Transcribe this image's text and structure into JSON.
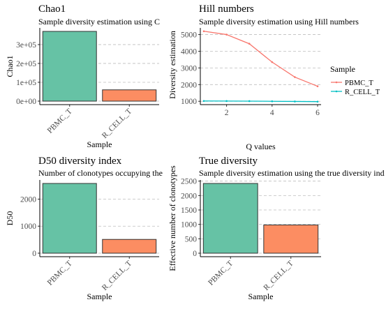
{
  "colors": {
    "PBMC_T": "#66c2a5",
    "R_CELL_T": "#fc8d62",
    "HILL_PBMC_T": "#f8766d",
    "HILL_R_CELL_T": "#00bfc4"
  },
  "chart_data": [
    {
      "type": "bar",
      "title": "Chao1",
      "subtitle": "Sample diversity estimation using C",
      "xlabel": "Sample",
      "ylabel": "Chao1",
      "categories": [
        "PBMC_T",
        "R_CELL_T"
      ],
      "values": [
        370000,
        60000
      ],
      "ylim": [
        0,
        370000
      ],
      "yticks": [
        0,
        100000,
        200000,
        300000
      ],
      "yticklabels": [
        "0e+00",
        "1e+05",
        "2e+05",
        "3e+05"
      ],
      "grid": true
    },
    {
      "type": "line",
      "title": "Hill numbers",
      "subtitle": "Sample diversity estimation using Hill numbers",
      "xlabel": "Q values",
      "ylabel": "Diversity estimation",
      "x": [
        1,
        2,
        3,
        4,
        5,
        6
      ],
      "xlim": [
        1,
        6
      ],
      "xticks": [
        2,
        4,
        6
      ],
      "ylim": [
        800,
        5400
      ],
      "yticks": [
        1000,
        2000,
        3000,
        4000,
        5000
      ],
      "grid": true,
      "legend_title": "Sample",
      "legend_position": "right",
      "series": [
        {
          "name": "PBMC_T",
          "values": [
            5200,
            5000,
            4450,
            3350,
            2450,
            1900
          ]
        },
        {
          "name": "R_CELL_T",
          "values": [
            1020,
            1015,
            1010,
            1000,
            990,
            980
          ]
        }
      ]
    },
    {
      "type": "bar",
      "title": "D50 diversity index",
      "subtitle": "Number of clonotypes occupying the",
      "xlabel": "Sample",
      "ylabel": "D50",
      "categories": [
        "PBMC_T",
        "R_CELL_T"
      ],
      "values": [
        2580,
        510
      ],
      "ylim": [
        0,
        2580
      ],
      "yticks": [
        0,
        1000,
        2000
      ],
      "grid": true
    },
    {
      "type": "bar",
      "title": "True diversity",
      "subtitle": "Sample diversity estimation using the true diversity ind",
      "xlabel": "Sample",
      "ylabel": "Effective number of clonotypes",
      "categories": [
        "PBMC_T",
        "R_CELL_T"
      ],
      "values": [
        2420,
        980
      ],
      "ylim": [
        0,
        2420
      ],
      "yticks": [
        0,
        500,
        1000,
        1500,
        2000,
        2500
      ],
      "grid": true
    }
  ]
}
